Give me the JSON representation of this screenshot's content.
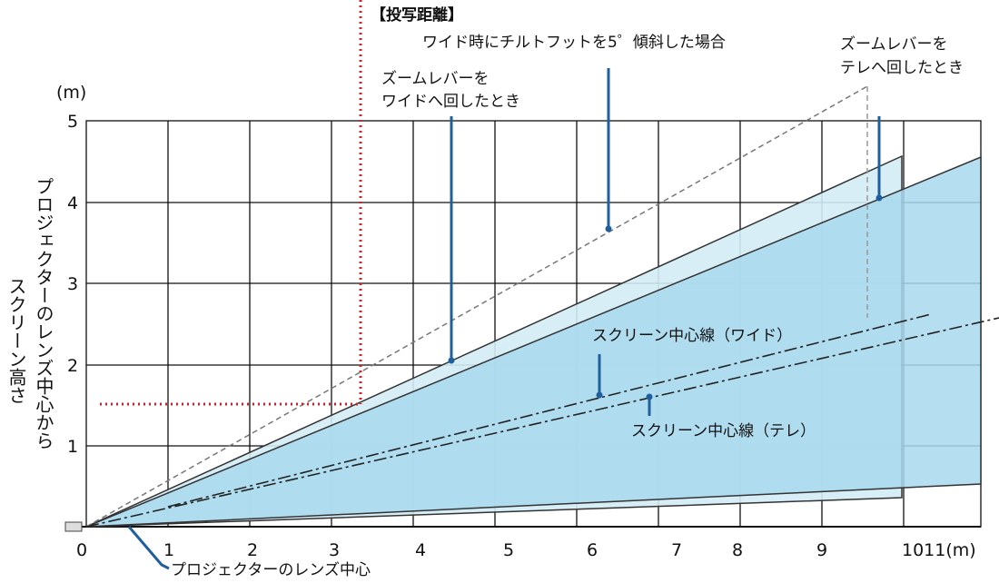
{
  "title": "【投写距離】",
  "y_unit": "(m)",
  "y_axis_label": [
    "プロジェクターのレンズ中心から",
    "スクリーン高さ"
  ],
  "x_ticks": [
    "0",
    "1",
    "2",
    "3",
    "4",
    "5",
    "6",
    "7",
    "8",
    "9",
    "1011(m)"
  ],
  "y_ticks": [
    "1",
    "2",
    "3",
    "4",
    "5"
  ],
  "annotations": {
    "tilt": "ワイド時にチルトフットを5゜傾斜した場合",
    "zoom_wide": [
      "ズームレバーを",
      "ワイドへ回したとき"
    ],
    "zoom_tele": [
      "ズームレバーを",
      "テレへ回したとき"
    ],
    "center_wide": "スクリーン中心線（ワイド）",
    "center_tele": "スクリーン中心線（テレ）",
    "lens_center": "プロジェクターのレンズ中心"
  }
}
